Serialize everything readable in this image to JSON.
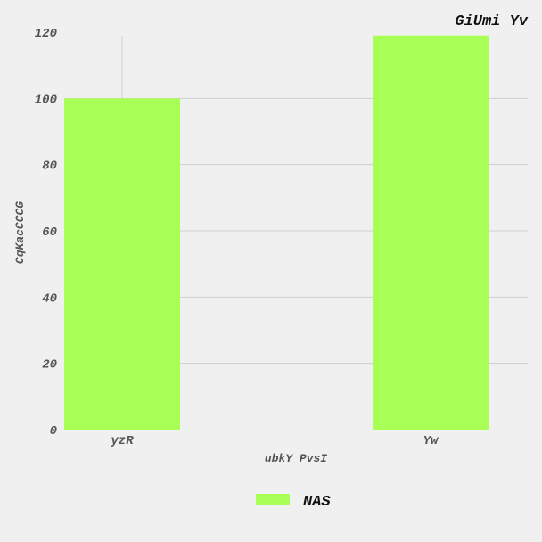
{
  "chart_data": {
    "type": "bar",
    "title": "GiUmi Yv",
    "xlabel": "ubkY PvsI",
    "ylabel": "CqKacCCCG",
    "categories": [
      "yzR",
      "Yw"
    ],
    "series": [
      {
        "name": "NAS",
        "values": [
          100,
          119
        ],
        "color": "#a8ff55"
      }
    ],
    "ylim": [
      0,
      120
    ],
    "yticks": [
      0,
      20,
      40,
      60,
      80,
      100,
      120
    ],
    "grid": true,
    "legend_position": "bottom-center"
  }
}
